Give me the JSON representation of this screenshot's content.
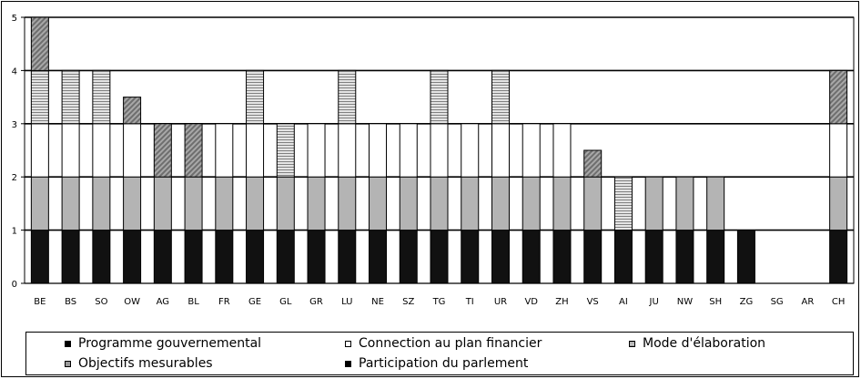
{
  "chart_data": {
    "type": "bar",
    "stacked": true,
    "categories": [
      "BE",
      "BS",
      "SO",
      "OW",
      "AG",
      "BL",
      "FR",
      "GE",
      "GL",
      "GR",
      "LU",
      "NE",
      "SZ",
      "TG",
      "TI",
      "UR",
      "VD",
      "ZH",
      "VS",
      "AI",
      "JU",
      "NW",
      "SH",
      "ZG",
      "SG",
      "AR",
      "CH"
    ],
    "series": [
      {
        "name": "Programme gouvernemental",
        "color": "#111111",
        "values": [
          1,
          1,
          1,
          1,
          1,
          1,
          1,
          1,
          1,
          1,
          1,
          1,
          1,
          1,
          1,
          1,
          1,
          1,
          1,
          1,
          1,
          1,
          1,
          1,
          0,
          0,
          1
        ]
      },
      {
        "name": "Connection au plan financier",
        "color": "#b4b4b4",
        "values": [
          1,
          1,
          1,
          1,
          1,
          1,
          1,
          1,
          1,
          1,
          1,
          1,
          1,
          1,
          1,
          1,
          1,
          1,
          1,
          0,
          1,
          1,
          1,
          0,
          0,
          0,
          1
        ]
      },
      {
        "name": "Mode d'élaboration",
        "color": "#ffffff",
        "values": [
          1,
          1,
          1,
          1,
          0,
          0,
          1,
          1,
          0,
          1,
          1,
          1,
          1,
          1,
          1,
          1,
          1,
          1,
          0,
          0,
          0,
          0,
          0,
          0,
          0,
          0,
          1
        ]
      },
      {
        "name": "Objectifs mesurables",
        "color": "#d8d8d8",
        "values": [
          1,
          1,
          1,
          0,
          0,
          0,
          0,
          1,
          1,
          0,
          1,
          0,
          0,
          1,
          0,
          1,
          0,
          0,
          0,
          1,
          0,
          0,
          0,
          0,
          0,
          0,
          0
        ]
      },
      {
        "name": "Participation du parlement",
        "color": "#9a9a9a",
        "values": [
          1,
          0,
          0,
          0.5,
          1,
          1,
          0,
          0,
          0,
          0,
          0,
          0,
          0,
          0,
          0,
          0,
          0,
          0,
          0.5,
          0,
          0,
          0,
          0,
          0,
          0,
          0,
          1
        ]
      }
    ],
    "ylim": [
      0,
      5
    ],
    "yticks": [
      "0",
      "1",
      "2",
      "3",
      "4",
      "5"
    ],
    "grid": true,
    "legend_position": "bottom",
    "legend": [
      {
        "label": "Programme gouvernemental",
        "icon": "black-square"
      },
      {
        "label": "Connection au plan financier",
        "icon": "white-square"
      },
      {
        "label": "Mode d'élaboration",
        "icon": "hatched-square"
      },
      {
        "label": "Objectifs mesurables",
        "icon": "grey-square"
      },
      {
        "label": "Participation du parlement",
        "icon": "black-square"
      }
    ]
  }
}
